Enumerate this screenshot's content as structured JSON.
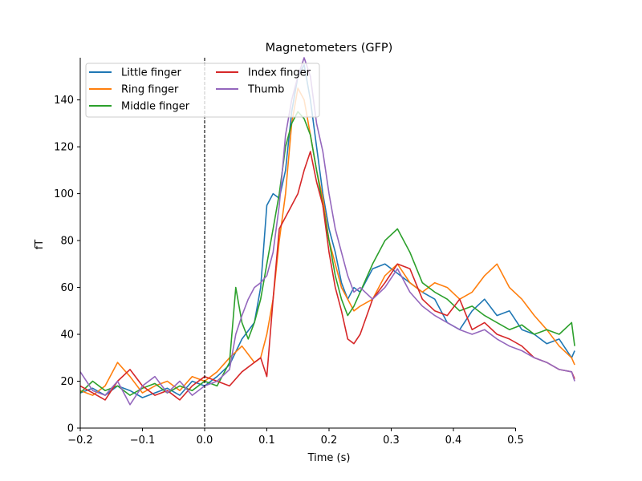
{
  "chart_data": {
    "type": "line",
    "title": "Magnetometers (GFP)",
    "xlabel": "Time (s)",
    "ylabel": "fT",
    "xlim": [
      -0.2,
      0.6
    ],
    "ylim": [
      0,
      158
    ],
    "xticks": [
      "−0.2",
      "−0.1",
      "0.0",
      "0.1",
      "0.2",
      "0.3",
      "0.4",
      "0.5"
    ],
    "xtick_values": [
      -0.2,
      -0.1,
      0.0,
      0.1,
      0.2,
      0.3,
      0.4,
      0.5
    ],
    "yticks": [
      "0",
      "20",
      "40",
      "60",
      "80",
      "100",
      "120",
      "140"
    ],
    "ytick_values": [
      0,
      20,
      40,
      60,
      80,
      100,
      120,
      140
    ],
    "grid": false,
    "legend_position": "top-left",
    "legend_columns": 2,
    "vline": {
      "x": 0.0,
      "style": "dashed",
      "color": "#000000"
    },
    "spines": "left-bottom",
    "series": [
      {
        "name": "Little finger",
        "color": "#1f77b4",
        "x": [
          -0.2,
          -0.18,
          -0.16,
          -0.14,
          -0.12,
          -0.1,
          -0.08,
          -0.06,
          -0.04,
          -0.02,
          0.0,
          0.02,
          0.04,
          0.06,
          0.08,
          0.09,
          0.1,
          0.11,
          0.12,
          0.13,
          0.14,
          0.15,
          0.16,
          0.17,
          0.18,
          0.19,
          0.2,
          0.21,
          0.22,
          0.23,
          0.24,
          0.25,
          0.27,
          0.29,
          0.31,
          0.33,
          0.35,
          0.37,
          0.39,
          0.41,
          0.43,
          0.45,
          0.47,
          0.49,
          0.51,
          0.53,
          0.55,
          0.57,
          0.59,
          0.595
        ],
        "values": [
          15,
          17,
          14,
          18,
          16,
          13,
          15,
          17,
          14,
          20,
          18,
          22,
          27,
          38,
          45,
          60,
          95,
          100,
          98,
          110,
          135,
          150,
          155,
          140,
          120,
          100,
          85,
          75,
          62,
          55,
          60,
          58,
          68,
          70,
          66,
          62,
          58,
          55,
          45,
          42,
          50,
          55,
          48,
          50,
          42,
          40,
          36,
          38,
          30,
          33
        ]
      },
      {
        "name": "Ring finger",
        "color": "#ff7f0e",
        "x": [
          -0.2,
          -0.18,
          -0.16,
          -0.14,
          -0.12,
          -0.1,
          -0.08,
          -0.06,
          -0.04,
          -0.02,
          0.0,
          0.02,
          0.04,
          0.06,
          0.08,
          0.09,
          0.1,
          0.11,
          0.12,
          0.13,
          0.14,
          0.15,
          0.16,
          0.17,
          0.18,
          0.19,
          0.2,
          0.21,
          0.22,
          0.23,
          0.24,
          0.25,
          0.27,
          0.29,
          0.31,
          0.33,
          0.35,
          0.37,
          0.39,
          0.41,
          0.43,
          0.45,
          0.47,
          0.49,
          0.51,
          0.53,
          0.55,
          0.57,
          0.59,
          0.595
        ],
        "values": [
          16,
          14,
          18,
          28,
          22,
          15,
          18,
          20,
          16,
          22,
          20,
          24,
          30,
          35,
          28,
          30,
          40,
          55,
          80,
          100,
          130,
          145,
          140,
          125,
          110,
          98,
          80,
          70,
          60,
          55,
          50,
          52,
          55,
          65,
          70,
          62,
          58,
          62,
          60,
          55,
          58,
          65,
          70,
          60,
          55,
          48,
          42,
          35,
          30,
          27
        ]
      },
      {
        "name": "Middle finger",
        "color": "#2ca02c",
        "x": [
          -0.2,
          -0.18,
          -0.16,
          -0.14,
          -0.12,
          -0.1,
          -0.08,
          -0.06,
          -0.04,
          -0.02,
          0.0,
          0.02,
          0.04,
          0.05,
          0.06,
          0.07,
          0.08,
          0.09,
          0.1,
          0.11,
          0.12,
          0.13,
          0.14,
          0.15,
          0.16,
          0.17,
          0.18,
          0.19,
          0.2,
          0.21,
          0.22,
          0.23,
          0.24,
          0.25,
          0.27,
          0.29,
          0.31,
          0.33,
          0.35,
          0.37,
          0.39,
          0.41,
          0.43,
          0.45,
          0.47,
          0.49,
          0.51,
          0.53,
          0.55,
          0.57,
          0.59,
          0.595
        ],
        "values": [
          15,
          20,
          16,
          18,
          14,
          17,
          19,
          15,
          18,
          16,
          20,
          18,
          28,
          60,
          45,
          38,
          45,
          55,
          70,
          85,
          100,
          120,
          130,
          135,
          132,
          125,
          110,
          95,
          80,
          65,
          55,
          48,
          52,
          58,
          70,
          80,
          85,
          75,
          62,
          58,
          55,
          50,
          52,
          48,
          45,
          42,
          44,
          40,
          42,
          40,
          45,
          35
        ]
      },
      {
        "name": "Index finger",
        "color": "#d62728",
        "x": [
          -0.2,
          -0.18,
          -0.16,
          -0.14,
          -0.12,
          -0.1,
          -0.08,
          -0.06,
          -0.04,
          -0.02,
          0.0,
          0.02,
          0.04,
          0.06,
          0.08,
          0.09,
          0.1,
          0.11,
          0.12,
          0.13,
          0.14,
          0.15,
          0.16,
          0.17,
          0.18,
          0.19,
          0.2,
          0.21,
          0.22,
          0.23,
          0.24,
          0.25,
          0.27,
          0.29,
          0.31,
          0.33,
          0.35,
          0.37,
          0.39,
          0.41,
          0.43,
          0.45,
          0.47,
          0.49,
          0.51,
          0.53,
          0.55,
          0.57,
          0.59,
          0.595
        ],
        "values": [
          18,
          15,
          12,
          20,
          25,
          18,
          14,
          16,
          12,
          18,
          22,
          20,
          18,
          24,
          28,
          30,
          22,
          55,
          85,
          90,
          95,
          100,
          110,
          118,
          105,
          95,
          75,
          60,
          50,
          38,
          36,
          40,
          55,
          62,
          70,
          68,
          55,
          50,
          48,
          55,
          42,
          45,
          40,
          38,
          35,
          30,
          28,
          25,
          24,
          21
        ]
      },
      {
        "name": "Thumb",
        "color": "#9467bd",
        "x": [
          -0.2,
          -0.18,
          -0.16,
          -0.14,
          -0.12,
          -0.1,
          -0.08,
          -0.06,
          -0.04,
          -0.02,
          0.0,
          0.02,
          0.04,
          0.05,
          0.06,
          0.07,
          0.08,
          0.09,
          0.1,
          0.11,
          0.12,
          0.13,
          0.14,
          0.15,
          0.16,
          0.17,
          0.18,
          0.19,
          0.2,
          0.21,
          0.22,
          0.23,
          0.24,
          0.25,
          0.27,
          0.29,
          0.31,
          0.33,
          0.35,
          0.37,
          0.39,
          0.41,
          0.43,
          0.45,
          0.47,
          0.49,
          0.51,
          0.53,
          0.55,
          0.57,
          0.59,
          0.595
        ],
        "values": [
          24,
          16,
          14,
          20,
          10,
          18,
          22,
          15,
          20,
          14,
          18,
          20,
          25,
          40,
          48,
          55,
          60,
          62,
          65,
          75,
          95,
          125,
          140,
          150,
          158,
          150,
          130,
          118,
          100,
          85,
          75,
          65,
          58,
          60,
          55,
          60,
          68,
          58,
          52,
          48,
          45,
          42,
          40,
          42,
          38,
          35,
          33,
          30,
          28,
          25,
          24,
          20
        ]
      }
    ]
  }
}
